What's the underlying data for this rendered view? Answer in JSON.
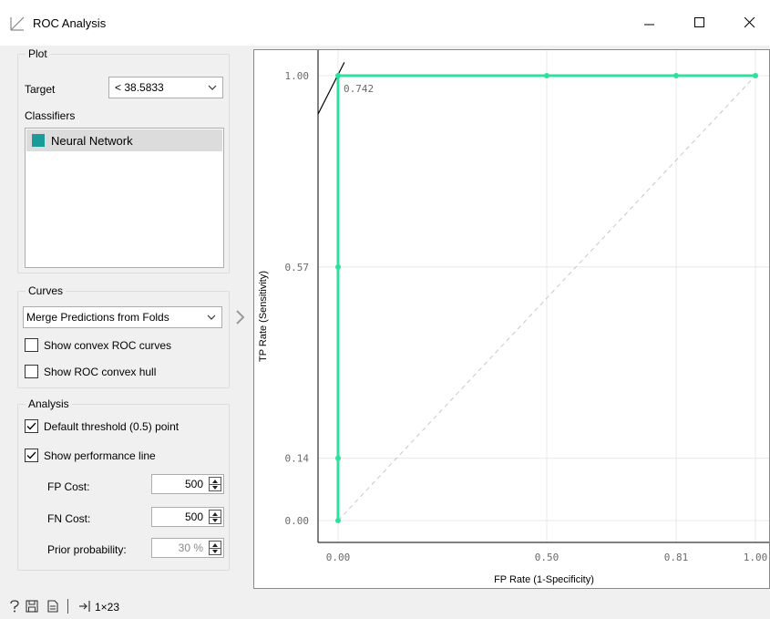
{
  "window": {
    "title": "ROC Analysis",
    "icon": "roc-curve-icon",
    "controls": [
      "minimize-icon",
      "maximize-icon",
      "close-icon"
    ]
  },
  "plot_group": {
    "legend": "Plot",
    "target_label": "Target",
    "target_value": "< 38.5833",
    "classifiers_label": "Classifiers",
    "classifiers": [
      {
        "name": "Neural Network",
        "color": "#1a9a99",
        "selected": true
      }
    ]
  },
  "curves_group": {
    "legend": "Curves",
    "mode_value": "Merge Predictions from Folds",
    "show_convex_curves": {
      "label": "Show convex ROC curves",
      "checked": false
    },
    "show_convex_hull": {
      "label": "Show ROC convex hull",
      "checked": false
    }
  },
  "analysis_group": {
    "legend": "Analysis",
    "default_threshold": {
      "label": "Default threshold (0.5) point",
      "checked": true
    },
    "show_performance_line": {
      "label": "Show performance line",
      "checked": true
    },
    "fp_cost": {
      "label": "FP Cost:",
      "value": "500"
    },
    "fn_cost": {
      "label": "FN Cost:",
      "value": "500"
    },
    "prior_probability": {
      "label": "Prior probability:",
      "value": "30 %"
    }
  },
  "status_bar": {
    "icons": [
      "help-icon",
      "save-icon",
      "report-icon",
      "input-icon"
    ],
    "data_info": "1×23"
  },
  "chart_data": {
    "type": "line",
    "xlabel": "FP Rate (1-Specificity)",
    "ylabel": "TP Rate (Sensitivity)",
    "xlim": [
      0,
      1
    ],
    "ylim": [
      0,
      1
    ],
    "x_ticks": [
      "0.00",
      "0.50",
      "0.81",
      "1.00"
    ],
    "y_ticks": [
      "0.00",
      "0.14",
      "0.57",
      "1.00"
    ],
    "grid": true,
    "series": [
      {
        "name": "Neural Network",
        "color": "#2ee0a0",
        "x": [
          0.0,
          0.0,
          0.0,
          0.0,
          0.5,
          0.81,
          1.0
        ],
        "y": [
          0.0,
          0.14,
          0.57,
          1.0,
          1.0,
          1.0,
          1.0
        ]
      }
    ],
    "diagonal": {
      "x": [
        0,
        1
      ],
      "y": [
        0,
        1
      ]
    },
    "performance_line": {
      "x": [
        -0.05,
        0.015
      ],
      "y": [
        0.91,
        1.03
      ]
    },
    "threshold_annotation": "0.742"
  }
}
